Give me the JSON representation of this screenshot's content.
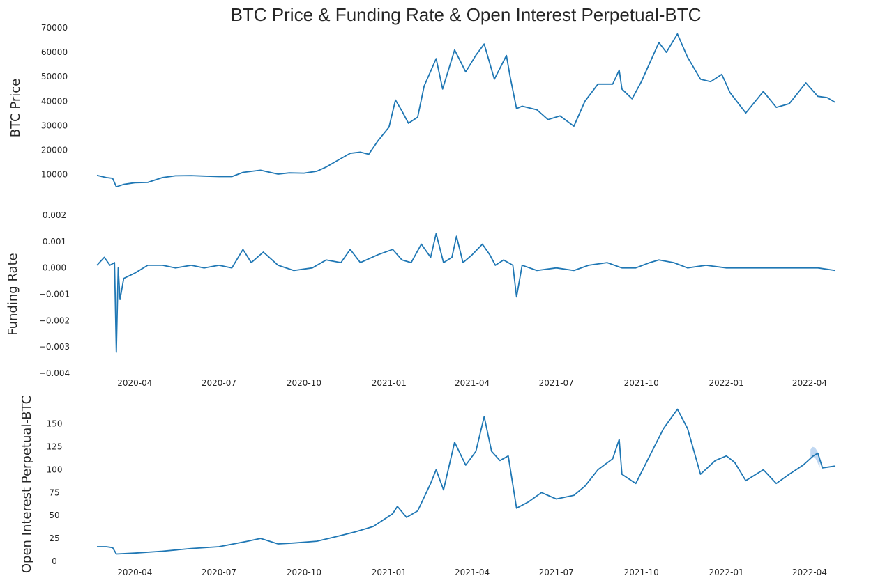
{
  "title": "BTC Price & Funding Rate & Open Interest Perpetual-BTC",
  "colors": {
    "line": "#1f77b4",
    "band": "#a6c8ec",
    "text": "#262626"
  },
  "chart_data": [
    {
      "type": "line",
      "name": "price",
      "ylabel": "BTC  Price",
      "ylim": [
        4500,
        70000
      ],
      "yticks": [
        "10000",
        "20000",
        "30000",
        "40000",
        "50000",
        "60000",
        "70000"
      ],
      "xlim": [
        "2020-02-20",
        "2022-04-29"
      ],
      "xticks": [],
      "grid": false,
      "points": [
        [
          "2020-02-20",
          9700
        ],
        [
          "2020-03-01",
          8800
        ],
        [
          "2020-03-08",
          8500
        ],
        [
          "2020-03-12",
          5000
        ],
        [
          "2020-03-20",
          6000
        ],
        [
          "2020-04-01",
          6700
        ],
        [
          "2020-04-15",
          6800
        ],
        [
          "2020-05-01",
          8800
        ],
        [
          "2020-05-15",
          9500
        ],
        [
          "2020-06-01",
          9600
        ],
        [
          "2020-06-15",
          9400
        ],
        [
          "2020-07-01",
          9200
        ],
        [
          "2020-07-15",
          9200
        ],
        [
          "2020-07-27",
          10900
        ],
        [
          "2020-08-15",
          11800
        ],
        [
          "2020-09-03",
          10200
        ],
        [
          "2020-09-15",
          10700
        ],
        [
          "2020-10-01",
          10600
        ],
        [
          "2020-10-15",
          11400
        ],
        [
          "2020-10-25",
          13100
        ],
        [
          "2020-11-05",
          15500
        ],
        [
          "2020-11-20",
          18700
        ],
        [
          "2020-12-01",
          19200
        ],
        [
          "2020-12-10",
          18300
        ],
        [
          "2020-12-20",
          23800
        ],
        [
          "2021-01-01",
          29400
        ],
        [
          "2021-01-08",
          40500
        ],
        [
          "2021-01-15",
          36000
        ],
        [
          "2021-01-22",
          31000
        ],
        [
          "2021-02-01",
          33500
        ],
        [
          "2021-02-08",
          46200
        ],
        [
          "2021-02-21",
          57400
        ],
        [
          "2021-02-28",
          45000
        ],
        [
          "2021-03-13",
          61000
        ],
        [
          "2021-03-25",
          52000
        ],
        [
          "2021-04-05",
          58800
        ],
        [
          "2021-04-14",
          63400
        ],
        [
          "2021-04-25",
          49000
        ],
        [
          "2021-05-08",
          58700
        ],
        [
          "2021-05-12",
          50000
        ],
        [
          "2021-05-19",
          37000
        ],
        [
          "2021-05-25",
          38000
        ],
        [
          "2021-06-10",
          36500
        ],
        [
          "2021-06-22",
          32500
        ],
        [
          "2021-07-05",
          34000
        ],
        [
          "2021-07-20",
          29800
        ],
        [
          "2021-08-01",
          40000
        ],
        [
          "2021-08-15",
          47000
        ],
        [
          "2021-08-31",
          47000
        ],
        [
          "2021-09-07",
          52700
        ],
        [
          "2021-09-10",
          45000
        ],
        [
          "2021-09-21",
          41000
        ],
        [
          "2021-10-01",
          48000
        ],
        [
          "2021-10-20",
          64000
        ],
        [
          "2021-10-28",
          60000
        ],
        [
          "2021-11-09",
          67500
        ],
        [
          "2021-11-20",
          58000
        ],
        [
          "2021-12-04",
          49000
        ],
        [
          "2021-12-15",
          48000
        ],
        [
          "2021-12-27",
          51000
        ],
        [
          "2022-01-05",
          43500
        ],
        [
          "2022-01-22",
          35200
        ],
        [
          "2022-02-10",
          44000
        ],
        [
          "2022-02-24",
          37500
        ],
        [
          "2022-03-10",
          39000
        ],
        [
          "2022-03-28",
          47500
        ],
        [
          "2022-04-10",
          42000
        ],
        [
          "2022-04-20",
          41500
        ],
        [
          "2022-04-29",
          39500
        ]
      ]
    },
    {
      "type": "line",
      "name": "funding",
      "ylabel": "Funding Rate",
      "ylim": [
        -0.004,
        0.002
      ],
      "yticks": [
        "−0.004",
        "−0.003",
        "−0.002",
        "−0.001",
        "0.000",
        "0.001",
        "0.002"
      ],
      "xlim": [
        "2020-02-20",
        "2022-04-29"
      ],
      "xticks": [
        "2020-04",
        "2020-07",
        "2020-10",
        "2021-01",
        "2021-04",
        "2021-07",
        "2021-10",
        "2022-01",
        "2022-04"
      ],
      "grid": false,
      "points": [
        [
          "2020-02-20",
          0.0001
        ],
        [
          "2020-02-28",
          0.0004
        ],
        [
          "2020-03-05",
          0.0001
        ],
        [
          "2020-03-10",
          0.0002
        ],
        [
          "2020-03-12",
          -0.0032
        ],
        [
          "2020-03-14",
          0.0
        ],
        [
          "2020-03-16",
          -0.0012
        ],
        [
          "2020-03-20",
          -0.0004
        ],
        [
          "2020-04-01",
          -0.0002
        ],
        [
          "2020-04-15",
          0.0001
        ],
        [
          "2020-05-01",
          0.0001
        ],
        [
          "2020-05-15",
          0.0
        ],
        [
          "2020-06-01",
          0.0001
        ],
        [
          "2020-06-15",
          0.0
        ],
        [
          "2020-07-01",
          0.0001
        ],
        [
          "2020-07-15",
          0.0
        ],
        [
          "2020-07-27",
          0.0007
        ],
        [
          "2020-08-05",
          0.0002
        ],
        [
          "2020-08-18",
          0.0006
        ],
        [
          "2020-09-03",
          0.0001
        ],
        [
          "2020-09-20",
          -0.0001
        ],
        [
          "2020-10-10",
          0.0
        ],
        [
          "2020-10-25",
          0.0003
        ],
        [
          "2020-11-10",
          0.0002
        ],
        [
          "2020-11-20",
          0.0007
        ],
        [
          "2020-12-01",
          0.0002
        ],
        [
          "2020-12-20",
          0.0005
        ],
        [
          "2021-01-05",
          0.0007
        ],
        [
          "2021-01-15",
          0.0003
        ],
        [
          "2021-01-25",
          0.0002
        ],
        [
          "2021-02-05",
          0.0009
        ],
        [
          "2021-02-15",
          0.0004
        ],
        [
          "2021-02-21",
          0.0013
        ],
        [
          "2021-03-01",
          0.0002
        ],
        [
          "2021-03-10",
          0.0004
        ],
        [
          "2021-03-15",
          0.0012
        ],
        [
          "2021-03-22",
          0.0002
        ],
        [
          "2021-04-01",
          0.0005
        ],
        [
          "2021-04-12",
          0.0009
        ],
        [
          "2021-04-20",
          0.0005
        ],
        [
          "2021-04-26",
          0.0001
        ],
        [
          "2021-05-05",
          0.0003
        ],
        [
          "2021-05-15",
          0.0001
        ],
        [
          "2021-05-19",
          -0.0011
        ],
        [
          "2021-05-25",
          0.0001
        ],
        [
          "2021-06-10",
          -0.0001
        ],
        [
          "2021-07-01",
          0.0
        ],
        [
          "2021-07-20",
          -0.0001
        ],
        [
          "2021-08-05",
          0.0001
        ],
        [
          "2021-08-25",
          0.0002
        ],
        [
          "2021-09-10",
          0.0
        ],
        [
          "2021-09-25",
          0.0
        ],
        [
          "2021-10-10",
          0.0002
        ],
        [
          "2021-10-20",
          0.0003
        ],
        [
          "2021-11-05",
          0.0002
        ],
        [
          "2021-11-20",
          0.0
        ],
        [
          "2021-12-10",
          0.0001
        ],
        [
          "2022-01-01",
          0.0
        ],
        [
          "2022-01-20",
          0.0
        ],
        [
          "2022-02-10",
          0.0
        ],
        [
          "2022-03-01",
          0.0
        ],
        [
          "2022-03-20",
          0.0
        ],
        [
          "2022-04-10",
          0.0
        ],
        [
          "2022-04-29",
          -0.0001
        ]
      ]
    },
    {
      "type": "line",
      "name": "open-interest",
      "ylabel": "Open Interest Perpetual-BTC",
      "ylim": [
        0,
        168
      ],
      "yticks": [
        "0",
        "25",
        "50",
        "75",
        "100",
        "125",
        "150"
      ],
      "xlim": [
        "2020-02-20",
        "2022-04-29"
      ],
      "xticks": [
        "2020-04",
        "2020-07",
        "2020-10",
        "2021-01",
        "2021-04",
        "2021-07",
        "2021-10",
        "2022-01",
        "2022-04"
      ],
      "grid": false,
      "band_interval": {
        "x_from": "2022-04-02",
        "x_to": "2022-04-12",
        "upper": [
          122,
          125,
          124,
          120,
          112
        ],
        "lower": [
          112,
          114,
          113,
          108,
          102
        ]
      },
      "points": [
        [
          "2020-02-20",
          16
        ],
        [
          "2020-03-01",
          16
        ],
        [
          "2020-03-08",
          15
        ],
        [
          "2020-03-12",
          8
        ],
        [
          "2020-04-01",
          9
        ],
        [
          "2020-05-01",
          11
        ],
        [
          "2020-06-01",
          14
        ],
        [
          "2020-07-01",
          16
        ],
        [
          "2020-08-01",
          22
        ],
        [
          "2020-08-15",
          25
        ],
        [
          "2020-09-03",
          19
        ],
        [
          "2020-09-20",
          20
        ],
        [
          "2020-10-15",
          22
        ],
        [
          "2020-11-05",
          27
        ],
        [
          "2020-11-25",
          32
        ],
        [
          "2020-12-15",
          38
        ],
        [
          "2021-01-05",
          52
        ],
        [
          "2021-01-10",
          60
        ],
        [
          "2021-01-20",
          48
        ],
        [
          "2021-02-01",
          55
        ],
        [
          "2021-02-15",
          85
        ],
        [
          "2021-02-21",
          100
        ],
        [
          "2021-03-01",
          78
        ],
        [
          "2021-03-13",
          130
        ],
        [
          "2021-03-25",
          105
        ],
        [
          "2021-04-05",
          120
        ],
        [
          "2021-04-14",
          158
        ],
        [
          "2021-04-22",
          120
        ],
        [
          "2021-05-01",
          110
        ],
        [
          "2021-05-10",
          115
        ],
        [
          "2021-05-19",
          58
        ],
        [
          "2021-06-01",
          65
        ],
        [
          "2021-06-15",
          75
        ],
        [
          "2021-07-01",
          68
        ],
        [
          "2021-07-20",
          72
        ],
        [
          "2021-08-01",
          82
        ],
        [
          "2021-08-15",
          100
        ],
        [
          "2021-08-31",
          112
        ],
        [
          "2021-09-07",
          133
        ],
        [
          "2021-09-10",
          95
        ],
        [
          "2021-09-25",
          85
        ],
        [
          "2021-10-10",
          115
        ],
        [
          "2021-10-25",
          145
        ],
        [
          "2021-11-09",
          166
        ],
        [
          "2021-11-20",
          145
        ],
        [
          "2021-12-04",
          95
        ],
        [
          "2021-12-20",
          110
        ],
        [
          "2022-01-01",
          115
        ],
        [
          "2022-01-10",
          108
        ],
        [
          "2022-01-22",
          88
        ],
        [
          "2022-02-10",
          100
        ],
        [
          "2022-02-24",
          85
        ],
        [
          "2022-03-10",
          95
        ],
        [
          "2022-03-25",
          105
        ],
        [
          "2022-04-05",
          115
        ],
        [
          "2022-04-10",
          118
        ],
        [
          "2022-04-15",
          102
        ],
        [
          "2022-04-29",
          104
        ]
      ]
    }
  ]
}
